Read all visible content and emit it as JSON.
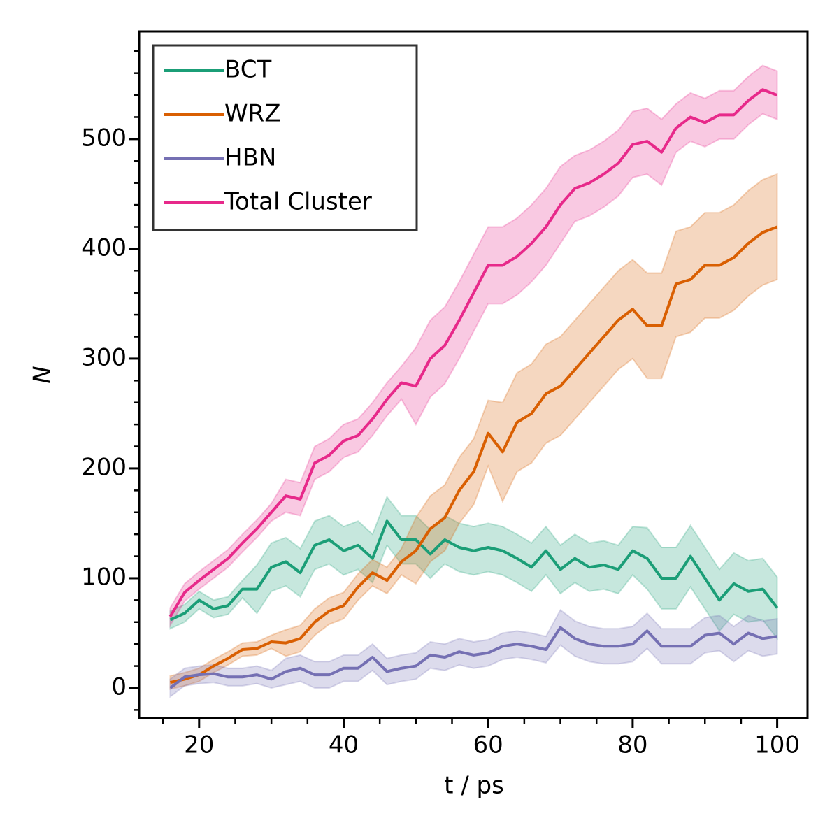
{
  "chart_data": {
    "type": "line",
    "xlabel": "t / ps",
    "ylabel": "N",
    "x": [
      16,
      18,
      20,
      22,
      24,
      26,
      28,
      30,
      32,
      34,
      36,
      38,
      40,
      42,
      44,
      46,
      48,
      50,
      52,
      54,
      56,
      58,
      60,
      62,
      64,
      66,
      68,
      70,
      72,
      74,
      76,
      78,
      80,
      82,
      84,
      86,
      88,
      90,
      92,
      94,
      96,
      98,
      100
    ],
    "series": [
      {
        "name": "BCT",
        "color": "#1b9e77",
        "values": [
          62,
          68,
          80,
          72,
          75,
          90,
          90,
          110,
          115,
          105,
          130,
          135,
          125,
          130,
          118,
          152,
          135,
          135,
          122,
          135,
          128,
          125,
          128,
          125,
          118,
          110,
          125,
          108,
          118,
          110,
          112,
          108,
          125,
          118,
          100,
          100,
          120,
          100,
          80,
          95,
          88,
          90,
          73
        ],
        "lower": [
          54,
          60,
          72,
          64,
          67,
          82,
          68,
          88,
          93,
          83,
          108,
          113,
          103,
          108,
          96,
          130,
          113,
          113,
          100,
          113,
          106,
          103,
          106,
          103,
          96,
          88,
          103,
          86,
          96,
          88,
          90,
          86,
          103,
          90,
          72,
          72,
          92,
          72,
          52,
          67,
          60,
          62,
          45
        ],
        "upper": [
          70,
          76,
          88,
          80,
          83,
          98,
          112,
          132,
          137,
          127,
          152,
          157,
          147,
          152,
          140,
          174,
          157,
          157,
          144,
          157,
          150,
          147,
          150,
          147,
          140,
          132,
          147,
          130,
          140,
          132,
          134,
          130,
          147,
          146,
          128,
          128,
          148,
          128,
          108,
          123,
          116,
          118,
          101
        ]
      },
      {
        "name": "WRZ",
        "color": "#d95f02",
        "values": [
          5,
          8,
          12,
          20,
          27,
          35,
          36,
          42,
          41,
          45,
          60,
          70,
          75,
          92,
          105,
          98,
          115,
          125,
          145,
          155,
          180,
          197,
          232,
          215,
          242,
          250,
          268,
          275,
          290,
          305,
          320,
          335,
          345,
          330,
          330,
          368,
          372,
          385,
          385,
          392,
          405,
          415,
          420
        ],
        "lower": [
          -1,
          2,
          6,
          14,
          21,
          29,
          30,
          36,
          29,
          33,
          48,
          58,
          63,
          80,
          93,
          86,
          103,
          95,
          115,
          125,
          150,
          167,
          202,
          170,
          197,
          205,
          223,
          230,
          245,
          260,
          275,
          290,
          300,
          282,
          282,
          320,
          324,
          337,
          337,
          344,
          357,
          367,
          372
        ],
        "upper": [
          11,
          14,
          18,
          26,
          33,
          41,
          42,
          48,
          53,
          57,
          72,
          82,
          87,
          104,
          117,
          110,
          127,
          155,
          175,
          185,
          210,
          227,
          262,
          260,
          287,
          295,
          313,
          320,
          335,
          350,
          365,
          380,
          390,
          378,
          378,
          416,
          420,
          433,
          433,
          440,
          453,
          463,
          468
        ]
      },
      {
        "name": "HBN",
        "color": "#7570b3",
        "values": [
          0,
          10,
          12,
          13,
          10,
          10,
          12,
          8,
          15,
          18,
          12,
          12,
          18,
          18,
          28,
          15,
          18,
          20,
          30,
          28,
          33,
          30,
          32,
          38,
          40,
          38,
          35,
          55,
          45,
          40,
          38,
          38,
          40,
          52,
          38,
          38,
          38,
          48,
          50,
          40,
          50,
          45,
          47
        ],
        "lower": [
          -8,
          2,
          4,
          5,
          2,
          2,
          4,
          0,
          3,
          6,
          0,
          0,
          6,
          6,
          16,
          3,
          6,
          8,
          18,
          16,
          21,
          18,
          20,
          26,
          28,
          26,
          23,
          39,
          29,
          24,
          22,
          22,
          24,
          36,
          22,
          22,
          22,
          32,
          34,
          24,
          34,
          29,
          31
        ],
        "upper": [
          8,
          18,
          20,
          21,
          18,
          18,
          20,
          16,
          27,
          30,
          24,
          24,
          30,
          30,
          40,
          27,
          30,
          32,
          42,
          40,
          45,
          42,
          44,
          50,
          52,
          50,
          47,
          71,
          61,
          56,
          54,
          54,
          56,
          68,
          54,
          54,
          54,
          64,
          66,
          56,
          66,
          61,
          63
        ]
      },
      {
        "name": "Total Cluster",
        "color": "#e7298a",
        "values": [
          65,
          87,
          98,
          108,
          118,
          132,
          145,
          160,
          175,
          172,
          205,
          212,
          225,
          230,
          245,
          263,
          278,
          275,
          300,
          312,
          335,
          360,
          385,
          385,
          393,
          405,
          420,
          440,
          455,
          460,
          468,
          478,
          495,
          498,
          488,
          510,
          520,
          515,
          522,
          522,
          535,
          545,
          540
        ],
        "lower": [
          57,
          79,
          90,
          100,
          110,
          124,
          137,
          152,
          160,
          157,
          190,
          197,
          210,
          215,
          230,
          248,
          263,
          240,
          265,
          277,
          300,
          325,
          350,
          350,
          358,
          370,
          385,
          405,
          425,
          430,
          438,
          448,
          465,
          468,
          458,
          488,
          498,
          493,
          500,
          500,
          513,
          523,
          518
        ],
        "upper": [
          73,
          95,
          106,
          116,
          126,
          140,
          153,
          168,
          190,
          187,
          220,
          227,
          240,
          245,
          260,
          278,
          293,
          310,
          335,
          347,
          370,
          395,
          420,
          420,
          428,
          440,
          455,
          475,
          485,
          490,
          498,
          508,
          525,
          528,
          518,
          532,
          542,
          537,
          544,
          544,
          557,
          567,
          562
        ]
      }
    ],
    "xlim": [
      11.7,
      104.2
    ],
    "ylim": [
      -27.4,
      598
    ],
    "xticks": [
      20,
      40,
      60,
      80,
      100
    ],
    "yticks": [
      0,
      100,
      200,
      300,
      400,
      500
    ],
    "xminorticks": [
      15,
      25,
      30,
      35,
      45,
      50,
      55,
      65,
      70,
      75,
      85,
      90,
      95
    ],
    "yminorticks": [
      -20,
      20,
      40,
      60,
      80,
      120,
      140,
      160,
      180,
      220,
      240,
      260,
      280,
      320,
      340,
      360,
      380,
      420,
      440,
      460,
      480,
      520,
      540,
      560,
      580
    ],
    "legend": "upper left",
    "band_opacity": 0.25
  }
}
